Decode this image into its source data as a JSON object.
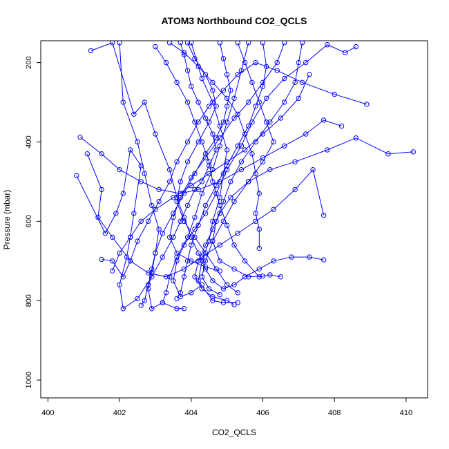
{
  "chart_data": {
    "type": "line",
    "title": "ATOM3 Northbound CO2_QCLS",
    "xlabel": "CO2_QCLS",
    "ylabel": "Pressure (mbar)",
    "xlim": [
      399.8,
      410.6
    ],
    "ylim": [
      1045,
      145
    ],
    "y_reversed": true,
    "x_ticks": [
      400,
      402,
      404,
      406,
      408,
      410
    ],
    "y_ticks": [
      200,
      400,
      600,
      800,
      1000
    ],
    "grid": false,
    "legend": "none",
    "color": "#0000ff",
    "marker": "open-circle",
    "series": [
      {
        "values": [
          [
            400.8,
            485
          ],
          [
            401.6,
            630
          ],
          [
            401.9,
            580
          ],
          [
            402.1,
            530
          ],
          [
            402.3,
            420
          ],
          [
            402.6,
            460
          ],
          [
            402.4,
            580
          ],
          [
            402.3,
            640
          ],
          [
            402.2,
            690
          ],
          [
            402.0,
            760
          ],
          [
            402.1,
            820
          ],
          [
            402.5,
            795
          ],
          [
            402.9,
            740
          ],
          [
            403.2,
            690
          ],
          [
            403.5,
            640
          ],
          [
            403.7,
            600
          ],
          [
            403.9,
            560
          ],
          [
            404.1,
            520
          ],
          [
            404.3,
            500
          ],
          [
            404.5,
            460
          ],
          [
            404.7,
            420
          ],
          [
            404.6,
            380
          ],
          [
            404.4,
            340
          ],
          [
            404.2,
            300
          ],
          [
            404.0,
            260
          ],
          [
            403.9,
            220
          ],
          [
            403.8,
            180
          ],
          [
            403.7,
            150
          ]
        ]
      },
      {
        "values": [
          [
            401.2,
            170
          ],
          [
            401.8,
            150
          ],
          [
            402.4,
            330
          ],
          [
            402.7,
            300
          ],
          [
            403.0,
            380
          ],
          [
            403.4,
            470
          ],
          [
            403.6,
            540
          ],
          [
            403.8,
            590
          ],
          [
            404.0,
            640
          ],
          [
            404.2,
            680
          ],
          [
            404.4,
            720
          ],
          [
            404.6,
            750
          ],
          [
            404.9,
            770
          ],
          [
            405.2,
            760
          ],
          [
            405.5,
            740
          ],
          [
            405.9,
            720
          ],
          [
            406.3,
            700
          ],
          [
            406.8,
            690
          ],
          [
            407.3,
            690
          ],
          [
            407.7,
            697
          ]
        ]
      },
      {
        "values": [
          [
            410.2,
            425
          ],
          [
            409.5,
            430
          ],
          [
            408.6,
            390
          ],
          [
            407.8,
            420
          ],
          [
            406.9,
            450
          ],
          [
            406.2,
            470
          ],
          [
            405.6,
            500
          ],
          [
            405.1,
            540
          ],
          [
            404.8,
            580
          ],
          [
            404.6,
            620
          ],
          [
            404.4,
            660
          ],
          [
            404.2,
            700
          ],
          [
            404.1,
            740
          ],
          [
            404.3,
            770
          ],
          [
            404.6,
            790
          ],
          [
            405.0,
            800
          ],
          [
            405.2,
            810
          ]
        ]
      },
      {
        "values": [
          [
            408.9,
            305
          ],
          [
            408.0,
            280
          ],
          [
            407.1,
            250
          ],
          [
            406.4,
            220
          ],
          [
            405.8,
            200
          ],
          [
            405.3,
            230
          ],
          [
            404.9,
            270
          ],
          [
            404.5,
            310
          ],
          [
            404.2,
            350
          ],
          [
            403.9,
            400
          ],
          [
            403.6,
            450
          ],
          [
            403.4,
            500
          ],
          [
            403.1,
            550
          ],
          [
            402.8,
            600
          ],
          [
            402.5,
            650
          ],
          [
            402.3,
            700
          ],
          [
            402.1,
            740
          ],
          [
            401.8,
            700
          ],
          [
            401.5,
            696
          ]
        ]
      },
      {
        "values": [
          [
            408.6,
            160
          ],
          [
            408.3,
            175
          ],
          [
            407.8,
            155
          ],
          [
            407.2,
            200
          ],
          [
            406.6,
            240
          ],
          [
            406.1,
            290
          ],
          [
            405.7,
            350
          ],
          [
            405.4,
            410
          ],
          [
            405.0,
            470
          ],
          [
            404.7,
            530
          ],
          [
            404.4,
            580
          ],
          [
            404.1,
            620
          ],
          [
            403.8,
            660
          ],
          [
            403.6,
            700
          ],
          [
            403.5,
            750
          ],
          [
            403.7,
            790
          ],
          [
            404.0,
            780
          ],
          [
            404.3,
            760
          ]
        ]
      },
      {
        "values": [
          [
            400.9,
            388
          ],
          [
            401.5,
            430
          ],
          [
            402.0,
            470
          ],
          [
            402.6,
            500
          ],
          [
            403.1,
            520
          ],
          [
            403.7,
            530
          ],
          [
            404.2,
            520
          ],
          [
            404.8,
            500
          ],
          [
            405.4,
            470
          ],
          [
            406.0,
            440
          ],
          [
            406.6,
            410
          ],
          [
            407.2,
            380
          ],
          [
            407.7,
            345
          ],
          [
            408.2,
            360
          ]
        ]
      },
      {
        "values": [
          [
            401.1,
            430
          ],
          [
            401.5,
            520
          ],
          [
            401.4,
            590
          ],
          [
            401.8,
            640
          ],
          [
            402.3,
            700
          ],
          [
            402.8,
            730
          ],
          [
            403.3,
            740
          ],
          [
            403.8,
            720
          ],
          [
            404.3,
            690
          ],
          [
            404.8,
            660
          ],
          [
            405.3,
            630
          ],
          [
            405.8,
            600
          ],
          [
            406.3,
            570
          ],
          [
            406.9,
            520
          ],
          [
            407.4,
            470
          ],
          [
            407.7,
            585
          ]
        ]
      },
      {
        "values": [
          [
            403.0,
            160
          ],
          [
            403.3,
            200
          ],
          [
            403.6,
            250
          ],
          [
            403.9,
            300
          ],
          [
            404.1,
            350
          ],
          [
            404.3,
            400
          ],
          [
            404.5,
            450
          ],
          [
            404.6,
            500
          ],
          [
            404.8,
            560
          ],
          [
            405.0,
            610
          ],
          [
            405.2,
            660
          ],
          [
            405.5,
            700
          ],
          [
            405.9,
            740
          ],
          [
            406.2,
            735
          ],
          [
            406.5,
            740
          ]
        ]
      },
      {
        "values": [
          [
            404.8,
            150
          ],
          [
            404.9,
            190
          ],
          [
            405.0,
            230
          ],
          [
            405.1,
            270
          ],
          [
            405.0,
            310
          ],
          [
            404.9,
            350
          ],
          [
            404.7,
            390
          ],
          [
            404.4,
            430
          ],
          [
            404.1,
            480
          ],
          [
            403.8,
            530
          ],
          [
            403.5,
            580
          ],
          [
            403.2,
            630
          ],
          [
            403.0,
            680
          ],
          [
            402.9,
            720
          ],
          [
            402.8,
            760
          ],
          [
            402.7,
            800
          ],
          [
            402.6,
            812
          ]
        ]
      },
      {
        "values": [
          [
            406.0,
            150
          ],
          [
            406.1,
            210
          ],
          [
            406.0,
            260
          ],
          [
            405.8,
            310
          ],
          [
            405.6,
            360
          ],
          [
            405.3,
            410
          ],
          [
            405.0,
            460
          ],
          [
            404.7,
            510
          ],
          [
            404.4,
            560
          ],
          [
            404.2,
            610
          ],
          [
            404.0,
            660
          ],
          [
            403.9,
            700
          ],
          [
            403.8,
            740
          ],
          [
            403.7,
            780
          ],
          [
            403.6,
            795
          ]
        ]
      },
      {
        "values": [
          [
            405.3,
            150
          ],
          [
            405.5,
            200
          ],
          [
            405.7,
            250
          ],
          [
            405.9,
            300
          ],
          [
            406.1,
            350
          ],
          [
            406.3,
            400
          ],
          [
            406.0,
            450
          ],
          [
            405.6,
            500
          ],
          [
            405.2,
            550
          ],
          [
            404.9,
            600
          ],
          [
            404.6,
            650
          ],
          [
            404.4,
            700
          ],
          [
            404.3,
            740
          ],
          [
            404.5,
            770
          ],
          [
            404.8,
            785
          ]
        ]
      },
      {
        "values": [
          [
            403.4,
            150
          ],
          [
            403.8,
            175
          ],
          [
            404.2,
            210
          ],
          [
            404.6,
            250
          ],
          [
            405.0,
            290
          ],
          [
            405.3,
            330
          ],
          [
            405.5,
            380
          ],
          [
            405.7,
            430
          ],
          [
            405.8,
            480
          ],
          [
            405.9,
            530
          ],
          [
            405.8,
            580
          ],
          [
            405.9,
            620
          ],
          [
            405.9,
            668
          ]
        ]
      },
      {
        "values": [
          [
            404.0,
            150
          ],
          [
            404.3,
            240
          ],
          [
            404.6,
            300
          ],
          [
            404.8,
            360
          ],
          [
            405.0,
            420
          ],
          [
            404.9,
            480
          ],
          [
            404.8,
            540
          ],
          [
            404.6,
            600
          ],
          [
            404.5,
            650
          ],
          [
            404.3,
            700
          ],
          [
            404.2,
            750
          ],
          [
            404.6,
            800
          ],
          [
            404.9,
            805
          ],
          [
            405.3,
            805
          ]
        ]
      },
      {
        "values": [
          [
            402.0,
            150
          ],
          [
            402.1,
            300
          ],
          [
            402.5,
            400
          ],
          [
            402.7,
            480
          ],
          [
            402.9,
            560
          ],
          [
            403.1,
            620
          ],
          [
            403.0,
            680
          ],
          [
            402.9,
            730
          ],
          [
            402.8,
            770
          ],
          [
            402.9,
            820
          ],
          [
            403.2,
            805
          ],
          [
            403.6,
            820
          ],
          [
            403.8,
            820
          ]
        ]
      },
      {
        "values": [
          [
            405.6,
            150
          ],
          [
            405.4,
            220
          ],
          [
            405.2,
            290
          ],
          [
            405.0,
            350
          ],
          [
            404.8,
            410
          ],
          [
            404.6,
            470
          ],
          [
            404.3,
            530
          ],
          [
            404.1,
            590
          ],
          [
            403.9,
            640
          ],
          [
            403.6,
            690
          ],
          [
            403.4,
            740
          ],
          [
            403.3,
            780
          ],
          [
            403.2,
            805
          ]
        ]
      },
      {
        "values": [
          [
            406.6,
            150
          ],
          [
            406.4,
            200
          ],
          [
            406.0,
            250
          ],
          [
            405.6,
            300
          ],
          [
            405.2,
            340
          ],
          [
            404.8,
            390
          ],
          [
            404.4,
            440
          ],
          [
            404.0,
            490
          ],
          [
            403.7,
            540
          ],
          [
            403.5,
            590
          ],
          [
            403.4,
            640
          ],
          [
            403.6,
            680
          ],
          [
            404.0,
            700
          ],
          [
            404.4,
            715
          ],
          [
            404.8,
            725
          ]
        ]
      },
      {
        "values": [
          [
            407.1,
            150
          ],
          [
            407.0,
            200
          ],
          [
            406.9,
            250
          ],
          [
            406.6,
            300
          ],
          [
            406.2,
            350
          ],
          [
            405.8,
            400
          ],
          [
            405.4,
            450
          ],
          [
            405.1,
            500
          ],
          [
            404.9,
            550
          ],
          [
            404.7,
            600
          ],
          [
            404.6,
            650
          ],
          [
            404.8,
            700
          ],
          [
            405.2,
            720
          ],
          [
            405.6,
            740
          ],
          [
            406.0,
            738
          ]
        ]
      },
      {
        "values": [
          [
            403.9,
            150
          ],
          [
            404.1,
            190
          ],
          [
            404.4,
            230
          ],
          [
            404.6,
            270
          ],
          [
            404.7,
            310
          ],
          [
            404.5,
            350
          ],
          [
            404.2,
            400
          ],
          [
            403.9,
            450
          ],
          [
            403.7,
            500
          ],
          [
            403.6,
            550
          ],
          [
            403.8,
            600
          ],
          [
            404.1,
            640
          ],
          [
            404.4,
            680
          ],
          [
            404.7,
            720
          ],
          [
            405.0,
            760
          ],
          [
            405.3,
            780
          ]
        ]
      },
      {
        "values": [
          [
            407.3,
            230
          ],
          [
            407.0,
            290
          ],
          [
            406.5,
            340
          ],
          [
            406.0,
            380
          ],
          [
            405.5,
            420
          ],
          [
            405.0,
            450
          ],
          [
            404.5,
            480
          ],
          [
            404.0,
            510
          ],
          [
            403.5,
            540
          ],
          [
            403.0,
            570
          ],
          [
            402.6,
            600
          ],
          [
            402.3,
            640
          ],
          [
            402.0,
            680
          ],
          [
            401.8,
            725
          ]
        ]
      }
    ]
  }
}
